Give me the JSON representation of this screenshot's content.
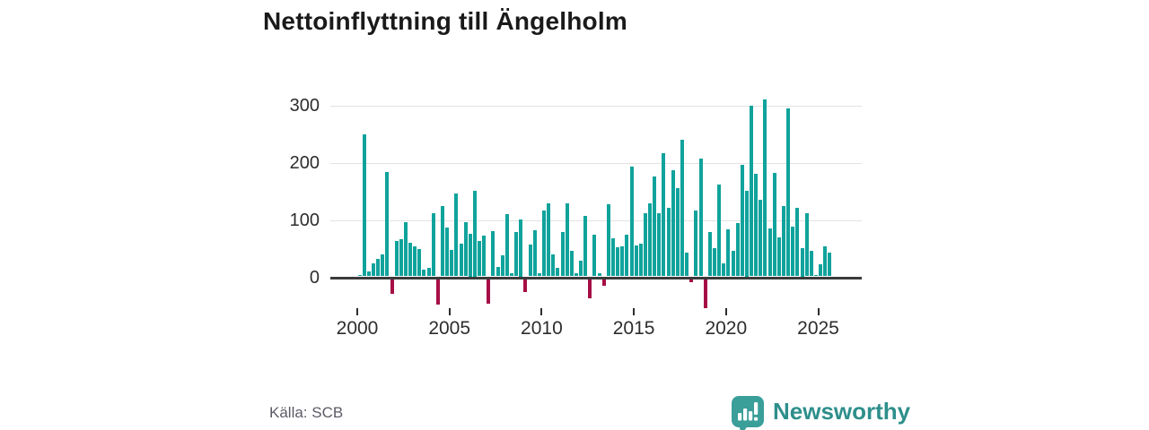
{
  "title": "Nettoinflyttning till Ängelholm",
  "source": "Källa: SCB",
  "logo": {
    "text": "Newsworthy"
  },
  "colors": {
    "positive": "#10a39c",
    "negative": "#a60f45",
    "axis": "#3b3b3b",
    "grid": "#e2e2e2",
    "title_text": "#1a1a1a",
    "tick_text": "#2d2d2d",
    "source_text": "#5b5b66",
    "logo_teal": "#3a9e99",
    "logo_text_teal": "#2e8f8b"
  },
  "chart_data": {
    "type": "bar",
    "title": "Nettoinflyttning till Ängelholm",
    "xlabel": "",
    "ylabel": "",
    "ylim": [
      -60,
      320
    ],
    "grid": "horizontal",
    "legend": "none",
    "y_tick_labels": [
      0,
      100,
      200,
      300
    ],
    "x_tick_labels": [
      "2000",
      "2005",
      "2010",
      "2015",
      "2020",
      "2025"
    ],
    "categories": [
      "2000 Q1",
      "2000 Q2",
      "2000 Q3",
      "2000 Q4",
      "2001 Q1",
      "2001 Q2",
      "2001 Q3",
      "2001 Q4",
      "2002 Q1",
      "2002 Q2",
      "2002 Q3",
      "2002 Q4",
      "2003 Q1",
      "2003 Q2",
      "2003 Q3",
      "2003 Q4",
      "2004 Q1",
      "2004 Q2",
      "2004 Q3",
      "2004 Q4",
      "2005 Q1",
      "2005 Q2",
      "2005 Q3",
      "2005 Q4",
      "2006 Q1",
      "2006 Q2",
      "2006 Q3",
      "2006 Q4",
      "2007 Q1",
      "2007 Q2",
      "2007 Q3",
      "2007 Q4",
      "2008 Q1",
      "2008 Q2",
      "2008 Q3",
      "2008 Q4",
      "2009 Q1",
      "2009 Q2",
      "2009 Q3",
      "2009 Q4",
      "2010 Q1",
      "2010 Q2",
      "2010 Q3",
      "2010 Q4",
      "2011 Q1",
      "2011 Q2",
      "2011 Q3",
      "2011 Q4",
      "2012 Q1",
      "2012 Q2",
      "2012 Q3",
      "2012 Q4",
      "2013 Q1",
      "2013 Q2",
      "2013 Q3",
      "2013 Q4",
      "2014 Q1",
      "2014 Q2",
      "2014 Q3",
      "2014 Q4",
      "2015 Q1",
      "2015 Q2",
      "2015 Q3",
      "2015 Q4",
      "2016 Q1",
      "2016 Q2",
      "2016 Q3",
      "2016 Q4",
      "2017 Q1",
      "2017 Q2",
      "2017 Q3",
      "2017 Q4",
      "2018 Q1",
      "2018 Q2",
      "2018 Q3",
      "2018 Q4",
      "2019 Q1",
      "2019 Q2",
      "2019 Q3",
      "2019 Q4",
      "2020 Q1",
      "2020 Q2",
      "2020 Q3",
      "2020 Q4",
      "2021 Q1",
      "2021 Q2",
      "2021 Q3",
      "2021 Q4",
      "2022 Q1",
      "2022 Q2",
      "2022 Q3",
      "2022 Q4",
      "2023 Q1",
      "2023 Q2",
      "2023 Q3",
      "2023 Q4",
      "2024 Q1",
      "2024 Q2",
      "2024 Q3",
      "2024 Q4",
      "2025 Q1",
      "2025 Q2",
      "2025 Q3"
    ],
    "values": [
      3,
      248,
      8,
      22,
      30,
      38,
      182,
      -25,
      62,
      65,
      95,
      58,
      52,
      48,
      12,
      15,
      110,
      -45,
      122,
      85,
      46,
      145,
      57,
      95,
      75,
      150,
      62,
      71,
      -43,
      79,
      17,
      36,
      108,
      5,
      78,
      100,
      -22,
      56,
      80,
      5,
      115,
      128,
      38,
      15,
      77,
      127,
      44,
      5,
      28,
      105,
      -33,
      73,
      5,
      -12,
      126,
      67,
      51,
      52,
      73,
      191,
      54,
      57,
      110,
      128,
      174,
      110,
      215,
      120,
      185,
      154,
      238,
      41,
      -5,
      115,
      205,
      -50,
      78,
      49,
      160,
      22,
      82,
      45,
      93,
      195,
      150,
      297,
      179,
      133,
      308,
      83,
      180,
      68,
      122,
      293,
      86,
      120,
      50,
      110,
      44,
      2,
      21,
      53,
      41
    ]
  }
}
